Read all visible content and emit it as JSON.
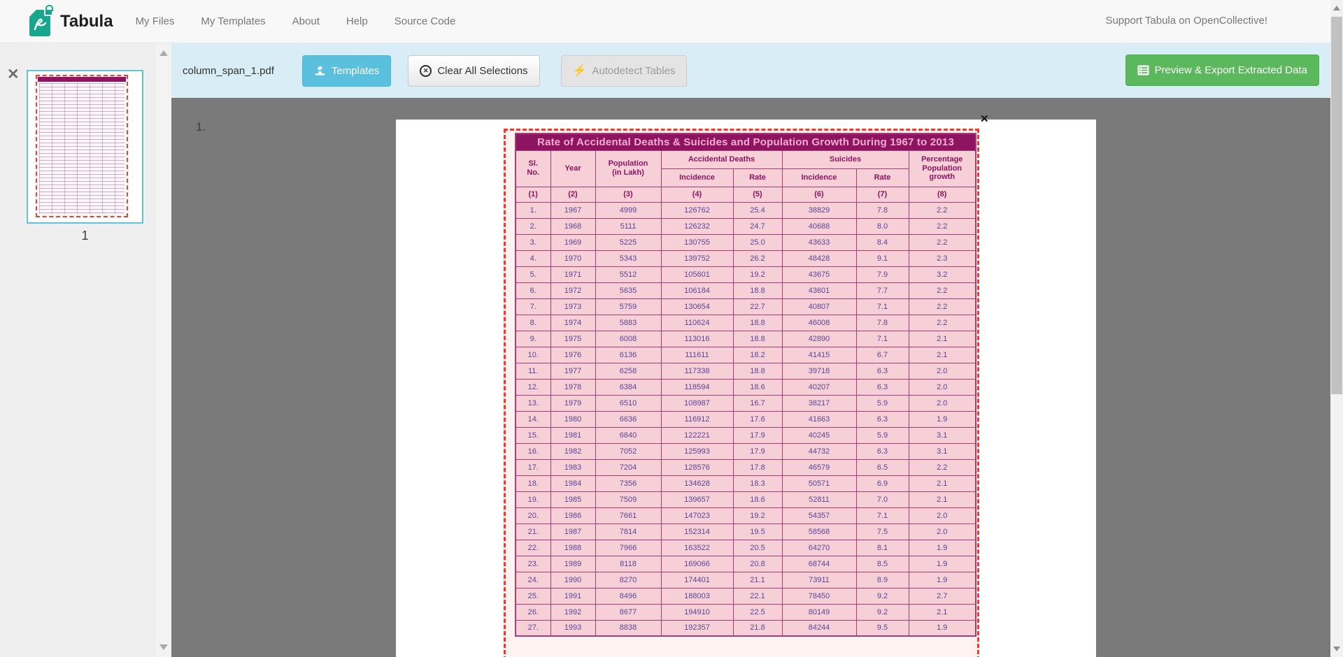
{
  "navbar": {
    "brand": "Tabula",
    "items": [
      {
        "label": "My Files"
      },
      {
        "label": "My Templates"
      },
      {
        "label": "About"
      },
      {
        "label": "Help"
      },
      {
        "label": "Source Code"
      }
    ],
    "support_link": "Support Tabula on OpenCollective!"
  },
  "toolbar": {
    "filename": "column_span_1.pdf",
    "templates_label": "Templates",
    "clear_label": "Clear All Selections",
    "autodetect_label": "Autodetect Tables",
    "export_label": "Preview & Export Extracted Data"
  },
  "sidebar": {
    "page_number": "1"
  },
  "main": {
    "page_marker": "1."
  },
  "icons": {
    "clear_glyph": "✕",
    "autodetect_glyph": "⚡",
    "thumbnail_close_glyph": "✕",
    "selection_close_glyph": "✕"
  },
  "pdf_table": {
    "title": "Rate of Accidental Deaths & Suicides and Population Growth During 1967 to 2013",
    "headers": {
      "sl_no": "Sl.\nNo.",
      "year": "Year",
      "population": "Population\n(in Lakh)",
      "accidental_deaths": "Accidental Deaths",
      "suicides": "Suicides",
      "incidence": "Incidence",
      "rate": "Rate",
      "incidence2": "Incidence",
      "rate2": "Rate",
      "percentage": "Percentage\nPopulation\ngrowth"
    },
    "col_numbers": [
      "(1)",
      "(2)",
      "(3)",
      "(4)",
      "(5)",
      "(6)",
      "(7)",
      "(8)"
    ],
    "rows": [
      [
        "1.",
        "1967",
        "4999",
        "126762",
        "25.4",
        "38829",
        "7.8",
        "2.2"
      ],
      [
        "2.",
        "1968",
        "5111",
        "126232",
        "24.7",
        "40688",
        "8.0",
        "2.2"
      ],
      [
        "3.",
        "1969",
        "5225",
        "130755",
        "25.0",
        "43633",
        "8.4",
        "2.2"
      ],
      [
        "4.",
        "1970",
        "5343",
        "139752",
        "26.2",
        "48428",
        "9.1",
        "2.3"
      ],
      [
        "5.",
        "1971",
        "5512",
        "105601",
        "19.2",
        "43675",
        "7.9",
        "3.2"
      ],
      [
        "6.",
        "1972",
        "5635",
        "106184",
        "18.8",
        "43601",
        "7.7",
        "2.2"
      ],
      [
        "7.",
        "1973",
        "5759",
        "130654",
        "22.7",
        "40807",
        "7.1",
        "2.2"
      ],
      [
        "8.",
        "1974",
        "5883",
        "110624",
        "18.8",
        "46008",
        "7.8",
        "2.2"
      ],
      [
        "9.",
        "1975",
        "6008",
        "113016",
        "18.8",
        "42890",
        "7.1",
        "2.1"
      ],
      [
        "10.",
        "1976",
        "6136",
        "111611",
        "18.2",
        "41415",
        "6.7",
        "2.1"
      ],
      [
        "11.",
        "1977",
        "6258",
        "117338",
        "18.8",
        "39718",
        "6.3",
        "2.0"
      ],
      [
        "12.",
        "1978",
        "6384",
        "118594",
        "18.6",
        "40207",
        "6.3",
        "2.0"
      ],
      [
        "13.",
        "1979",
        "6510",
        "108987",
        "16.7",
        "38217",
        "5.9",
        "2.0"
      ],
      [
        "14.",
        "1980",
        "6636",
        "116912",
        "17.6",
        "41663",
        "6.3",
        "1.9"
      ],
      [
        "15.",
        "1981",
        "6840",
        "122221",
        "17.9",
        "40245",
        "5.9",
        "3.1"
      ],
      [
        "16.",
        "1982",
        "7052",
        "125993",
        "17.9",
        "44732",
        "6.3",
        "3.1"
      ],
      [
        "17.",
        "1983",
        "7204",
        "128576",
        "17.8",
        "46579",
        "6.5",
        "2.2"
      ],
      [
        "18.",
        "1984",
        "7356",
        "134628",
        "18.3",
        "50571",
        "6.9",
        "2.1"
      ],
      [
        "19.",
        "1985",
        "7509",
        "139657",
        "18.6",
        "52811",
        "7.0",
        "2.1"
      ],
      [
        "20.",
        "1986",
        "7661",
        "147023",
        "19.2",
        "54357",
        "7.1",
        "2.0"
      ],
      [
        "21.",
        "1987",
        "7814",
        "152314",
        "19.5",
        "58568",
        "7.5",
        "2.0"
      ],
      [
        "22.",
        "1988",
        "7966",
        "163522",
        "20.5",
        "64270",
        "8.1",
        "1.9"
      ],
      [
        "23.",
        "1989",
        "8118",
        "169066",
        "20.8",
        "68744",
        "8.5",
        "1.9"
      ],
      [
        "24.",
        "1990",
        "8270",
        "174401",
        "21.1",
        "73911",
        "8.9",
        "1.9"
      ],
      [
        "25.",
        "1991",
        "8496",
        "188003",
        "22.1",
        "78450",
        "9.2",
        "2.7"
      ],
      [
        "26.",
        "1992",
        "8677",
        "194910",
        "22.5",
        "80149",
        "9.2",
        "2.1"
      ],
      [
        "27.",
        "1993",
        "8838",
        "192357",
        "21.8",
        "84244",
        "9.5",
        "1.9"
      ]
    ]
  },
  "colors": {
    "toolbar_bg": "#d9edf7",
    "templates_blue": "#5bc0de",
    "export_green": "#5cb85c",
    "selection_red": "#f2392c",
    "table_header_magenta": "#8e1361",
    "table_cell_pink": "#f6d0d6",
    "table_border": "#a63d7a",
    "table_text_purple": "#5a4598",
    "canvas_gray": "#7a7a7a",
    "thumbnail_border_cyan": "#5fc3dc"
  }
}
